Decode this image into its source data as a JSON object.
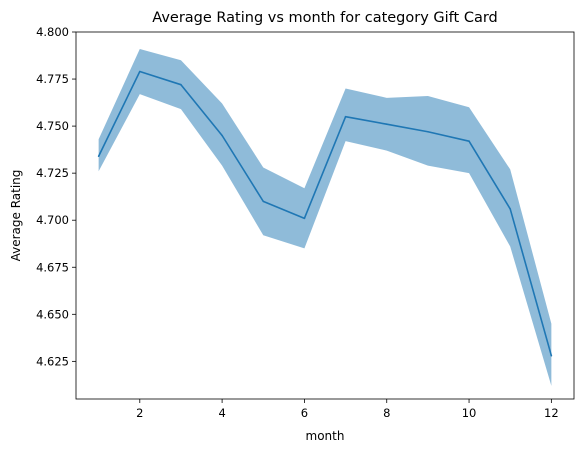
{
  "chart_data": {
    "type": "line",
    "title": "Average Rating vs month for category Gift Card",
    "xlabel": "month",
    "ylabel": "Average Rating",
    "xlim": [
      0.45,
      12.55
    ],
    "ylim": [
      4.605,
      4.8
    ],
    "x_ticks": [
      2,
      4,
      6,
      8,
      10,
      12
    ],
    "y_ticks": [
      4.625,
      4.65,
      4.675,
      4.7,
      4.725,
      4.75,
      4.775,
      4.8
    ],
    "y_tick_labels": [
      "4.625",
      "4.650",
      "4.675",
      "4.700",
      "4.725",
      "4.750",
      "4.775",
      "4.800"
    ],
    "grid": false,
    "line_color": "#1f77b4",
    "band_color": "#1f77b4",
    "series": [
      {
        "x": [
          1,
          2,
          3,
          4,
          5,
          6,
          7,
          8,
          9,
          10,
          11,
          12
        ],
        "values": [
          4.734,
          4.779,
          4.772,
          4.745,
          4.71,
          4.701,
          4.755,
          4.751,
          4.747,
          4.742,
          4.706,
          4.628
        ],
        "lower": [
          4.726,
          4.767,
          4.759,
          4.729,
          4.692,
          4.685,
          4.742,
          4.737,
          4.729,
          4.725,
          4.686,
          4.612
        ],
        "upper": [
          4.743,
          4.791,
          4.785,
          4.762,
          4.728,
          4.717,
          4.77,
          4.765,
          4.766,
          4.76,
          4.727,
          4.645
        ]
      }
    ]
  }
}
